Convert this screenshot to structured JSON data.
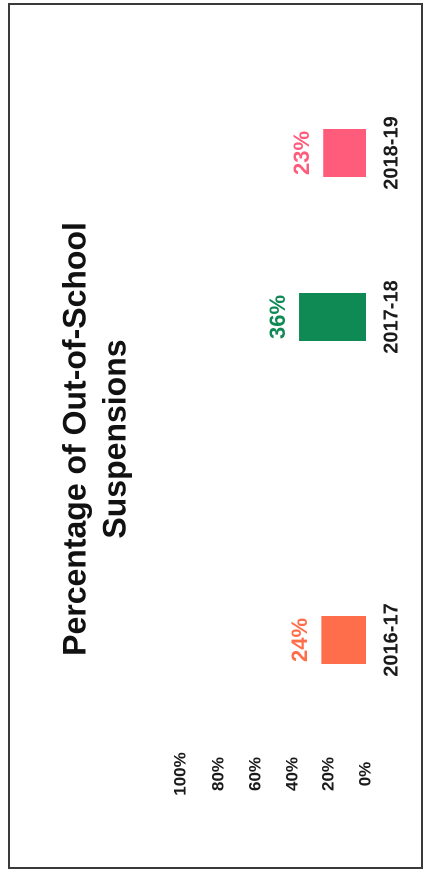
{
  "chart_data": {
    "type": "bar",
    "orientation": "rotated-90-ccw",
    "title_lines": [
      "Percentage of Out-of-School",
      "Suspensions"
    ],
    "categories": [
      "2016-17",
      "2017-18",
      "2018-19"
    ],
    "values": [
      24,
      36,
      23
    ],
    "value_labels": [
      "24%",
      "36%",
      "23%"
    ],
    "bar_colors": [
      "#ff6e4a",
      "#0f8a55",
      "#ff5c7c"
    ],
    "yticks": [
      "0%",
      "20%",
      "40%",
      "60%",
      "80%",
      "100%"
    ],
    "ylim": [
      0,
      100
    ],
    "grid": false,
    "legend": false
  }
}
